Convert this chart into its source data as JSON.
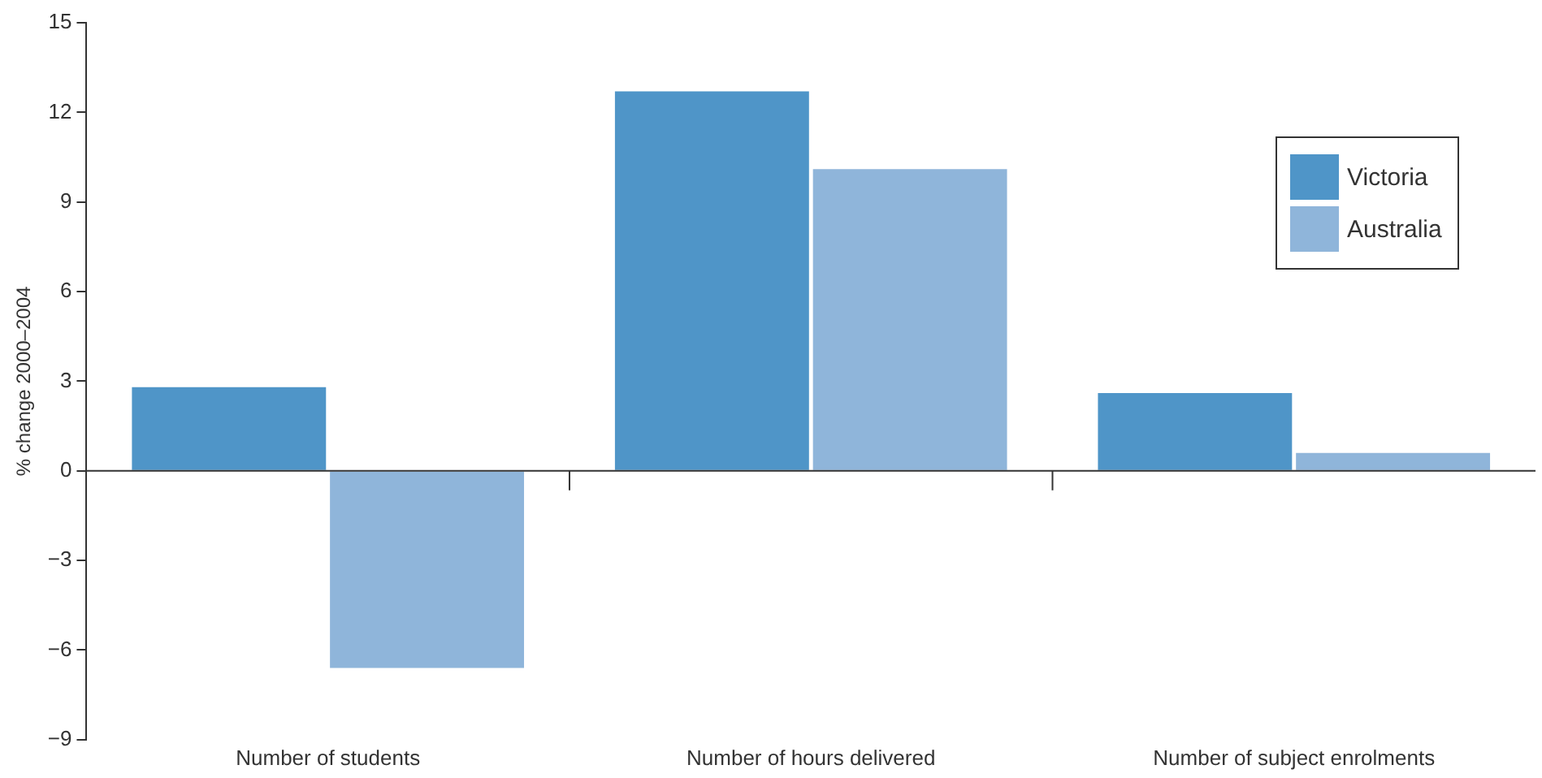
{
  "chart_data": {
    "type": "bar",
    "ylabel": "% change 2000–2004",
    "categories": [
      "Number of students",
      "Number of hours delivered",
      "Number of subject enrolments"
    ],
    "series": [
      {
        "name": "Victoria",
        "color": "#4f95c8",
        "values": [
          2.8,
          12.7,
          2.6
        ]
      },
      {
        "name": "Australia",
        "color": "#8fb5da",
        "values": [
          -6.6,
          10.1,
          0.6
        ]
      }
    ],
    "ylim": [
      -9,
      15
    ],
    "yticks": [
      -9,
      -6,
      -3,
      0,
      3,
      6,
      9,
      12,
      15
    ],
    "legend": "top right"
  }
}
